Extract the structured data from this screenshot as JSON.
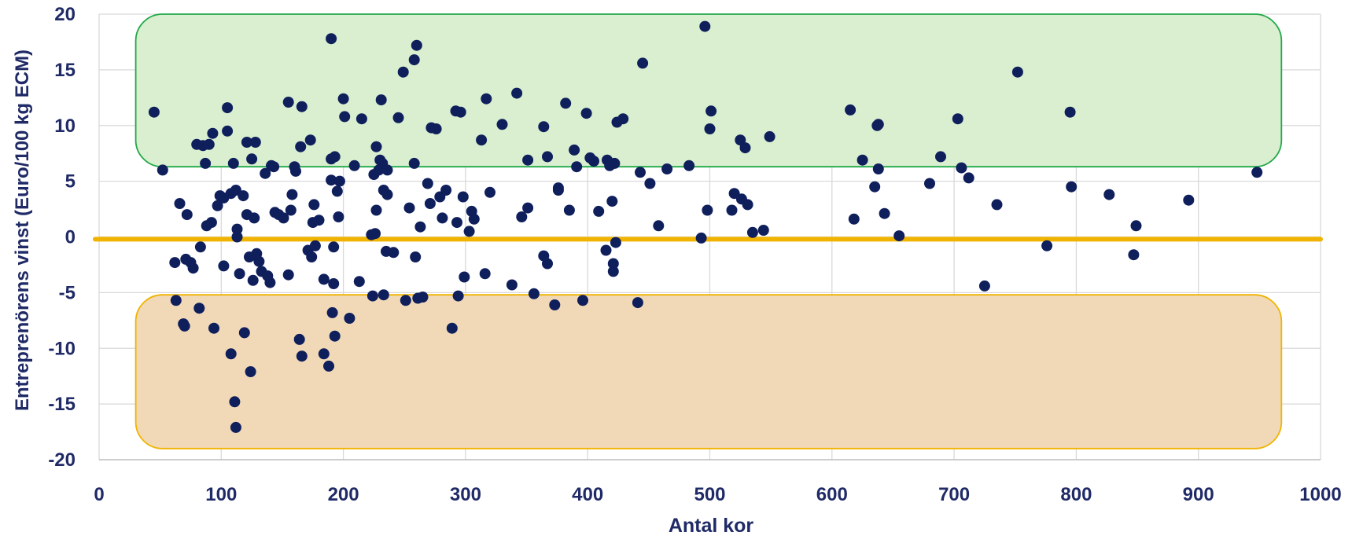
{
  "chart_data": {
    "type": "scatter",
    "title": "",
    "xlabel": "Antal kor",
    "ylabel": "Entreprenörens vinst (Euro/100 kg ECM)",
    "xlim": [
      0,
      1000
    ],
    "ylim": [
      -20,
      20
    ],
    "x_ticks": [
      "0",
      "100",
      "200",
      "300",
      "400",
      "500",
      "600",
      "700",
      "800",
      "900",
      "1000"
    ],
    "y_ticks": [
      "-20",
      "-15",
      "-10",
      "-5",
      "0",
      "5",
      "10",
      "15",
      "20"
    ],
    "grid": true,
    "legend": "none",
    "colors": {
      "points": "#0f1f5c",
      "zero_line": "#f0b400",
      "high_zone_fill": "#d9efcf",
      "high_zone_stroke": "#22a84a",
      "low_zone_fill": "#f1d9b8",
      "low_zone_stroke": "#f0b400",
      "grid": "#d9d9d9",
      "text": "#1f2a66"
    },
    "zones": [
      {
        "name": "high",
        "x_range": [
          30,
          968
        ],
        "y_range": [
          6.3,
          20
        ]
      },
      {
        "name": "low",
        "x_range": [
          30,
          968
        ],
        "y_range": [
          -19,
          -5.2
        ]
      }
    ],
    "reference_line_y": -0.2,
    "points": [
      [
        45,
        11.2
      ],
      [
        52,
        6
      ],
      [
        62,
        -2.3
      ],
      [
        63,
        -5.7
      ],
      [
        66,
        3
      ],
      [
        69,
        -7.8
      ],
      [
        70,
        -8
      ],
      [
        71,
        -2
      ],
      [
        72,
        2
      ],
      [
        75,
        -2.3
      ],
      [
        77,
        -2.8
      ],
      [
        80,
        8.3
      ],
      [
        82,
        -6.4
      ],
      [
        83,
        -0.9
      ],
      [
        85,
        8.2
      ],
      [
        87,
        6.6
      ],
      [
        88,
        1
      ],
      [
        90,
        8.3
      ],
      [
        92,
        1.3
      ],
      [
        93,
        9.3
      ],
      [
        94,
        -8.2
      ],
      [
        97,
        2.8
      ],
      [
        99,
        3.7
      ],
      [
        102,
        -2.6
      ],
      [
        102,
        3.5
      ],
      [
        105,
        11.6
      ],
      [
        105,
        9.5
      ],
      [
        108,
        3.9
      ],
      [
        108,
        -10.5
      ],
      [
        110,
        6.6
      ],
      [
        111,
        -14.8
      ],
      [
        112,
        4.2
      ],
      [
        112,
        -17.1
      ],
      [
        113,
        0.7
      ],
      [
        113,
        0
      ],
      [
        115,
        -3.3
      ],
      [
        118,
        3.7
      ],
      [
        119,
        -8.6
      ],
      [
        121,
        8.5
      ],
      [
        121,
        2
      ],
      [
        123,
        -1.8
      ],
      [
        124,
        -12.1
      ],
      [
        125,
        7
      ],
      [
        126,
        -3.9
      ],
      [
        127,
        1.7
      ],
      [
        128,
        8.5
      ],
      [
        129,
        -1.5
      ],
      [
        131,
        -2.2
      ],
      [
        133,
        -3.1
      ],
      [
        136,
        5.7
      ],
      [
        138,
        -3.5
      ],
      [
        140,
        -4.1
      ],
      [
        141,
        6.4
      ],
      [
        143,
        6.3
      ],
      [
        144,
        2.2
      ],
      [
        147,
        2
      ],
      [
        151,
        1.7
      ],
      [
        155,
        12.1
      ],
      [
        155,
        -3.4
      ],
      [
        157,
        2.4
      ],
      [
        158,
        3.8
      ],
      [
        160,
        6.3
      ],
      [
        161,
        5.9
      ],
      [
        164,
        -9.2
      ],
      [
        165,
        8.1
      ],
      [
        166,
        11.7
      ],
      [
        166,
        -10.7
      ],
      [
        171,
        -1.2
      ],
      [
        173,
        8.7
      ],
      [
        174,
        -1.8
      ],
      [
        175,
        1.3
      ],
      [
        176,
        2.9
      ],
      [
        177,
        -0.8
      ],
      [
        180,
        1.5
      ],
      [
        184,
        -3.8
      ],
      [
        184,
        -10.5
      ],
      [
        188,
        -11.6
      ],
      [
        190,
        7
      ],
      [
        190,
        5.1
      ],
      [
        190,
        17.8
      ],
      [
        191,
        -6.8
      ],
      [
        192,
        -0.9
      ],
      [
        192,
        -4.2
      ],
      [
        193,
        7.2
      ],
      [
        193,
        -8.9
      ],
      [
        195,
        4.1
      ],
      [
        196,
        1.8
      ],
      [
        197,
        5
      ],
      [
        200,
        12.4
      ],
      [
        201,
        10.8
      ],
      [
        205,
        -7.3
      ],
      [
        209,
        6.4
      ],
      [
        213,
        -4
      ],
      [
        215,
        10.6
      ],
      [
        223,
        0.2
      ],
      [
        224,
        -5.3
      ],
      [
        225,
        5.6
      ],
      [
        226,
        0.3
      ],
      [
        227,
        2.4
      ],
      [
        227,
        8.1
      ],
      [
        229,
        6
      ],
      [
        230,
        6.9
      ],
      [
        231,
        12.3
      ],
      [
        232,
        6.6
      ],
      [
        233,
        -5.2
      ],
      [
        233,
        4.2
      ],
      [
        235,
        -1.3
      ],
      [
        236,
        3.8
      ],
      [
        236,
        6
      ],
      [
        241,
        -1.4
      ],
      [
        245,
        10.7
      ],
      [
        249,
        14.8
      ],
      [
        251,
        -5.7
      ],
      [
        254,
        2.6
      ],
      [
        258,
        6.6
      ],
      [
        258,
        15.9
      ],
      [
        259,
        -1.8
      ],
      [
        260,
        17.2
      ],
      [
        261,
        -5.5
      ],
      [
        263,
        0.9
      ],
      [
        265,
        -5.4
      ],
      [
        269,
        4.8
      ],
      [
        271,
        3
      ],
      [
        272,
        9.8
      ],
      [
        276,
        9.7
      ],
      [
        279,
        3.6
      ],
      [
        281,
        1.7
      ],
      [
        284,
        4.2
      ],
      [
        289,
        -8.2
      ],
      [
        292,
        11.3
      ],
      [
        293,
        1.3
      ],
      [
        294,
        -5.3
      ],
      [
        296,
        11.2
      ],
      [
        298,
        3.6
      ],
      [
        299,
        -3.6
      ],
      [
        303,
        0.5
      ],
      [
        305,
        2.3
      ],
      [
        307,
        1.6
      ],
      [
        313,
        8.7
      ],
      [
        316,
        -3.3
      ],
      [
        317,
        12.4
      ],
      [
        320,
        4
      ],
      [
        330,
        10.1
      ],
      [
        338,
        -4.3
      ],
      [
        342,
        12.9
      ],
      [
        346,
        1.8
      ],
      [
        351,
        2.6
      ],
      [
        351,
        6.9
      ],
      [
        356,
        -5.1
      ],
      [
        364,
        -1.7
      ],
      [
        364,
        9.9
      ],
      [
        367,
        7.2
      ],
      [
        367,
        -2.4
      ],
      [
        373,
        -6.1
      ],
      [
        376,
        4.4
      ],
      [
        376,
        4.2
      ],
      [
        382,
        12
      ],
      [
        385,
        2.4
      ],
      [
        389,
        7.8
      ],
      [
        391,
        6.3
      ],
      [
        396,
        -5.7
      ],
      [
        399,
        11.1
      ],
      [
        402,
        7.1
      ],
      [
        405,
        6.8
      ],
      [
        409,
        2.3
      ],
      [
        415,
        -1.2
      ],
      [
        416,
        6.9
      ],
      [
        418,
        6.4
      ],
      [
        420,
        3.2
      ],
      [
        421,
        -2.4
      ],
      [
        421,
        -3.1
      ],
      [
        422,
        6.6
      ],
      [
        423,
        -0.5
      ],
      [
        424,
        10.3
      ],
      [
        429,
        10.6
      ],
      [
        441,
        -5.9
      ],
      [
        443,
        5.8
      ],
      [
        445,
        15.6
      ],
      [
        451,
        4.8
      ],
      [
        458,
        1
      ],
      [
        465,
        6.1
      ],
      [
        483,
        6.4
      ],
      [
        493,
        -0.1
      ],
      [
        496,
        18.9
      ],
      [
        498,
        2.4
      ],
      [
        500,
        9.7
      ],
      [
        501,
        11.3
      ],
      [
        518,
        2.4
      ],
      [
        520,
        3.9
      ],
      [
        525,
        8.7
      ],
      [
        526,
        3.4
      ],
      [
        529,
        8
      ],
      [
        531,
        2.9
      ],
      [
        535,
        0.4
      ],
      [
        544,
        0.6
      ],
      [
        549,
        9
      ],
      [
        615,
        11.4
      ],
      [
        618,
        1.6
      ],
      [
        625,
        6.9
      ],
      [
        635,
        4.5
      ],
      [
        637,
        10
      ],
      [
        638,
        10.1
      ],
      [
        638,
        6.1
      ],
      [
        643,
        2.1
      ],
      [
        655,
        0.1
      ],
      [
        680,
        4.8
      ],
      [
        689,
        7.2
      ],
      [
        703,
        10.6
      ],
      [
        706,
        6.2
      ],
      [
        712,
        5.3
      ],
      [
        725,
        -4.4
      ],
      [
        735,
        2.9
      ],
      [
        752,
        14.8
      ],
      [
        776,
        -0.8
      ],
      [
        795,
        11.2
      ],
      [
        796,
        4.5
      ],
      [
        827,
        3.8
      ],
      [
        847,
        -1.6
      ],
      [
        849,
        1
      ],
      [
        892,
        3.3
      ],
      [
        948,
        5.8
      ]
    ]
  }
}
